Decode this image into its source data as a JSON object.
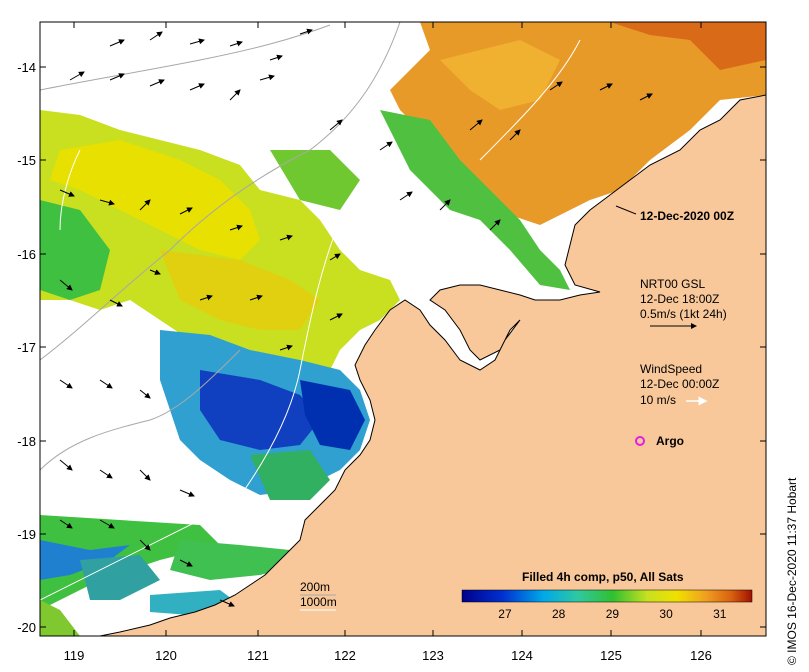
{
  "map": {
    "lon_ticks": [
      "119",
      "120",
      "121",
      "122",
      "123",
      "124",
      "125",
      "126"
    ],
    "lat_ticks": [
      "-14",
      "-15",
      "-16",
      "-17",
      "-18",
      "-19",
      "-20"
    ],
    "date_label": "12-Dec-2020 00Z",
    "current_legend": {
      "line1": "NRT00 GSL",
      "line2": "12-Dec 18:00Z",
      "line3": "0.5m/s (1kt 24h)"
    },
    "wind_legend": {
      "line1": "WindSpeed",
      "line2": "12-Dec 00:00Z",
      "line3": "10 m/s"
    },
    "argo_label": "Argo",
    "depth_legend": {
      "line1": "200m",
      "line2": "1000m"
    },
    "colorbar": {
      "title": "Filled 4h comp, p50, All Sats",
      "ticks": [
        "27",
        "28",
        "29",
        "30",
        "31"
      ],
      "range": [
        26.2,
        31.6
      ]
    },
    "credit": "© IMOS 16-Dec-2020 11:37 Hobart",
    "colors": {
      "land": "#f9c89a",
      "land_outline": "#000000",
      "argo": "#e020e0"
    }
  }
}
